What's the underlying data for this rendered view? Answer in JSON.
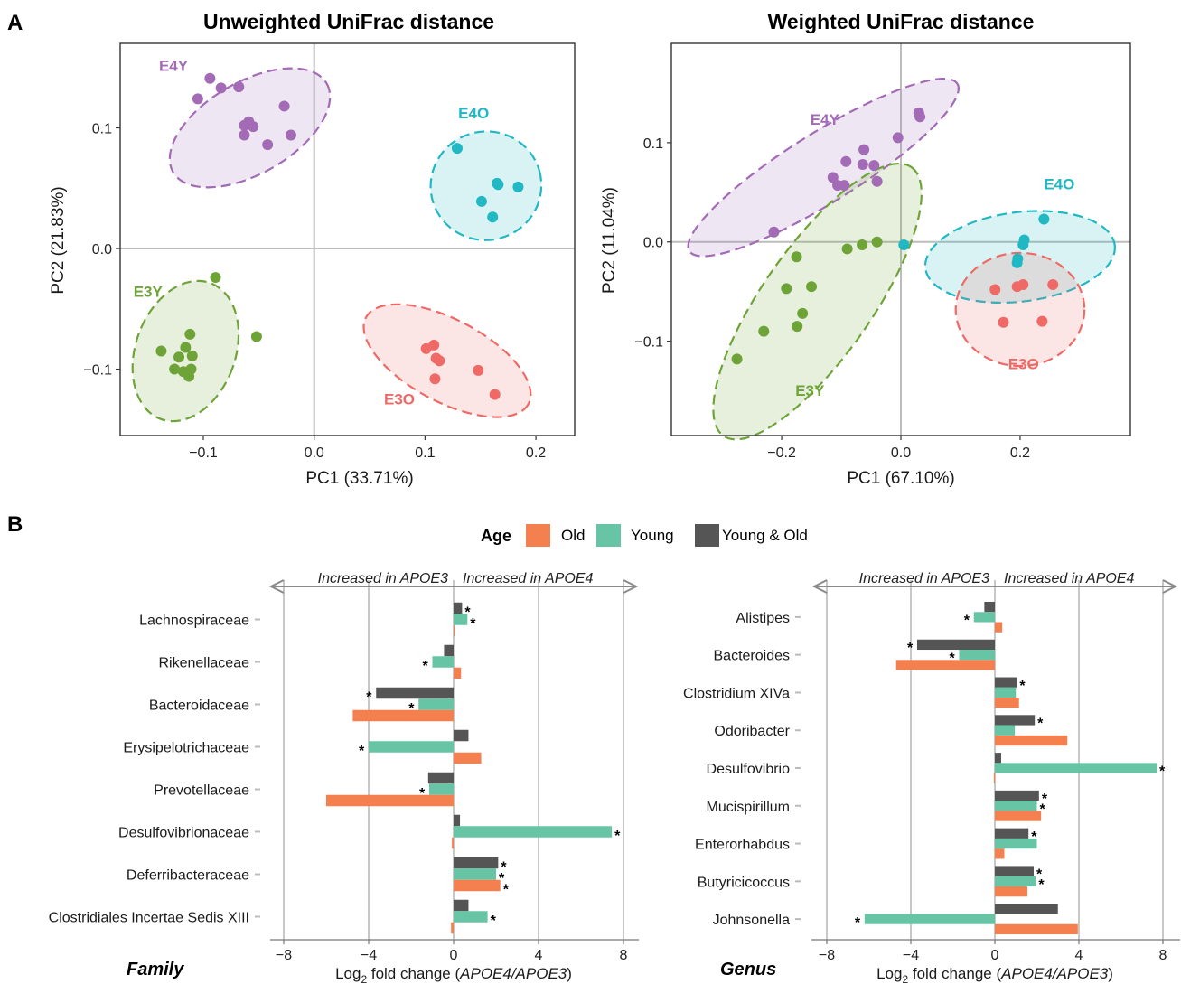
{
  "panel_labels": [
    "A",
    "B"
  ],
  "colors": {
    "E4Y": "#a36bb6",
    "E4O": "#1fb8c3",
    "E3Y": "#6ea338",
    "E3O": "#ef6a66",
    "Old": "#f4804f",
    "Young": "#67c5a5",
    "Both": "#555555"
  },
  "chart_data": [
    {
      "type": "scatter",
      "title": "Unweighted UniFrac distance",
      "xlabel": "PC1 (33.71%)",
      "ylabel": "PC2 (21.83%)",
      "xlim": [
        -0.175,
        0.235
      ],
      "ylim": [
        -0.155,
        0.17
      ],
      "xticks": [
        -0.1,
        0.0,
        0.1,
        0.2
      ],
      "xtick_labels": [
        "−0.1",
        "0.0",
        "0.1",
        "0.2"
      ],
      "yticks": [
        -0.1,
        0.0,
        0.1
      ],
      "ytick_labels": [
        "−0.1",
        "0.0",
        "0.1"
      ],
      "grid": false,
      "zero_lines": true,
      "groups": [
        {
          "name": "E4Y",
          "label_at": [
            -0.14,
            0.147
          ],
          "ellipse": {
            "cx": -0.058,
            "cy": 0.1,
            "rx": 0.08,
            "ry": 0.038,
            "angle": -30
          },
          "points": [
            [
              -0.094,
              0.141
            ],
            [
              -0.084,
              0.133
            ],
            [
              -0.105,
              0.124
            ],
            [
              -0.063,
              0.102
            ],
            [
              -0.059,
              0.105
            ],
            [
              -0.055,
              0.101
            ],
            [
              -0.027,
              0.118
            ],
            [
              -0.063,
              0.094
            ],
            [
              -0.021,
              0.094
            ],
            [
              -0.042,
              0.086
            ],
            [
              -0.068,
              0.134
            ]
          ]
        },
        {
          "name": "E4O",
          "label_at": [
            0.13,
            0.108
          ],
          "ellipse": {
            "cx": 0.155,
            "cy": 0.052,
            "rx": 0.05,
            "ry": 0.045,
            "angle": -15
          },
          "points": [
            [
              0.129,
              0.083
            ],
            [
              0.165,
              0.054
            ],
            [
              0.166,
              0.053
            ],
            [
              0.184,
              0.051
            ],
            [
              0.151,
              0.039
            ],
            [
              0.161,
              0.026
            ]
          ]
        },
        {
          "name": "E3Y",
          "label_at": [
            -0.163,
            -0.04
          ],
          "ellipse": {
            "cx": -0.116,
            "cy": -0.085,
            "rx": 0.045,
            "ry": 0.06,
            "angle": 20
          },
          "points": [
            [
              -0.089,
              -0.024
            ],
            [
              -0.052,
              -0.073
            ],
            [
              -0.112,
              -0.071
            ],
            [
              -0.116,
              -0.082
            ],
            [
              -0.11,
              -0.089
            ],
            [
              -0.122,
              -0.09
            ],
            [
              -0.138,
              -0.085
            ],
            [
              -0.111,
              -0.1
            ],
            [
              -0.118,
              -0.102
            ],
            [
              -0.126,
              -0.1
            ],
            [
              -0.113,
              -0.106
            ]
          ]
        },
        {
          "name": "E3O",
          "label_at": [
            0.063,
            -0.129
          ],
          "ellipse": {
            "cx": 0.12,
            "cy": -0.093,
            "rx": 0.083,
            "ry": 0.034,
            "angle": 28
          },
          "points": [
            [
              0.108,
              -0.08
            ],
            [
              0.101,
              -0.083
            ],
            [
              0.11,
              -0.091
            ],
            [
              0.113,
              -0.093
            ],
            [
              0.148,
              -0.101
            ],
            [
              0.109,
              -0.108
            ],
            [
              0.163,
              -0.121
            ]
          ]
        }
      ]
    },
    {
      "type": "scatter",
      "title": "Weighted UniFrac distance",
      "xlabel": "PC1 (67.10%)",
      "ylabel": "PC2 (11.04%)",
      "xlim": [
        -0.385,
        0.385
      ],
      "ylim": [
        -0.195,
        0.2
      ],
      "xticks": [
        -0.2,
        0.0,
        0.2
      ],
      "xtick_labels": [
        "−0.2",
        "0.0",
        "0.2"
      ],
      "yticks": [
        -0.1,
        0.0,
        0.1
      ],
      "ytick_labels": [
        "−0.1",
        "0.0",
        "0.1"
      ],
      "grid": false,
      "zero_lines": true,
      "groups": [
        {
          "name": "E4Y",
          "label_at": [
            -0.152,
            0.118
          ],
          "ellipse": {
            "cx": -0.13,
            "cy": 0.075,
            "rx": 0.265,
            "ry": 0.035,
            "angle": -32
          },
          "points": [
            [
              -0.213,
              0.01
            ],
            [
              -0.114,
              0.065
            ],
            [
              -0.106,
              0.057
            ],
            [
              -0.095,
              0.057
            ],
            [
              -0.092,
              0.081
            ],
            [
              -0.062,
              0.093
            ],
            [
              -0.045,
              0.077
            ],
            [
              -0.064,
              0.078
            ],
            [
              -0.04,
              0.061
            ],
            [
              -0.005,
              0.105
            ],
            [
              0.03,
              0.13
            ],
            [
              0.032,
              0.126
            ]
          ]
        },
        {
          "name": "E4O",
          "label_at": [
            0.24,
            0.053
          ],
          "ellipse": {
            "cx": 0.2,
            "cy": -0.015,
            "rx": 0.16,
            "ry": 0.045,
            "angle": -7
          },
          "points": [
            [
              0.24,
              0.023
            ],
            [
              0.207,
              0.002
            ],
            [
              0.205,
              -0.003
            ],
            [
              0.196,
              -0.017
            ],
            [
              0.195,
              -0.021
            ],
            [
              0.005,
              -0.003
            ]
          ]
        },
        {
          "name": "E3Y",
          "label_at": [
            -0.177,
            -0.155
          ],
          "ellipse": {
            "cx": -0.14,
            "cy": -0.06,
            "rx": 0.275,
            "ry": 0.055,
            "angle": -55
          },
          "points": [
            [
              -0.04,
              0.0
            ],
            [
              -0.09,
              -0.007
            ],
            [
              -0.065,
              -0.003
            ],
            [
              -0.175,
              -0.015
            ],
            [
              -0.192,
              -0.047
            ],
            [
              -0.15,
              -0.045
            ],
            [
              -0.165,
              -0.072
            ],
            [
              -0.174,
              -0.085
            ],
            [
              -0.23,
              -0.09
            ],
            [
              -0.275,
              -0.118
            ]
          ]
        },
        {
          "name": "E3O",
          "label_at": [
            0.18,
            -0.128
          ],
          "ellipse": {
            "cx": 0.2,
            "cy": -0.068,
            "rx": 0.108,
            "ry": 0.057,
            "angle": 0
          },
          "points": [
            [
              0.195,
              -0.045
            ],
            [
              0.205,
              -0.043
            ],
            [
              0.255,
              -0.043
            ],
            [
              0.158,
              -0.048
            ],
            [
              0.172,
              -0.081
            ],
            [
              0.237,
              -0.08
            ]
          ]
        }
      ]
    },
    {
      "type": "bar",
      "orientation": "horizontal",
      "facet": "Family",
      "xlabel_parts": [
        "Log",
        "2",
        " fold change (",
        "APOE4/APOE3",
        ")"
      ],
      "xlim": [
        -8.8,
        8.8
      ],
      "xticks": [
        -8,
        -4,
        0,
        4,
        8
      ],
      "xtick_labels": [
        "−8",
        "−4",
        "0",
        "4",
        "8"
      ],
      "grid": "vertical",
      "arrow_labels": [
        "Increased in APOE3",
        "Increased in APOE4"
      ],
      "series_names": [
        "Young & Old",
        "Young",
        "Old"
      ],
      "categories": [
        "Lachnospiraceae",
        "Rikenellaceae",
        "Bacteroidaceae",
        "Erysipelotrichaceae",
        "Prevotellaceae",
        "Desulfovibrionaceae",
        "Deferribacteraceae",
        "Clostridiales Incertae Sedis XIII"
      ],
      "series": [
        {
          "key": "Both",
          "values": [
            0.4,
            -0.45,
            -3.65,
            0.7,
            -1.2,
            0.3,
            2.1,
            0.7
          ],
          "sig": [
            true,
            false,
            true,
            false,
            false,
            false,
            true,
            false
          ]
        },
        {
          "key": "Young",
          "values": [
            0.65,
            -1.0,
            -1.65,
            -4.0,
            -1.15,
            7.45,
            2.0,
            1.6
          ],
          "sig": [
            true,
            true,
            true,
            true,
            true,
            true,
            true,
            true
          ]
        },
        {
          "key": "Old",
          "values": [
            0.05,
            0.35,
            -4.75,
            1.3,
            -6.0,
            -0.08,
            2.2,
            -0.12
          ],
          "sig": [
            false,
            false,
            false,
            false,
            false,
            false,
            true,
            false
          ]
        }
      ]
    },
    {
      "type": "bar",
      "orientation": "horizontal",
      "facet": "Genus",
      "xlabel_parts": [
        "Log",
        "2",
        " fold change (",
        "APOE4/APOE3",
        ")"
      ],
      "xlim": [
        -8.8,
        8.8
      ],
      "xticks": [
        -8,
        -4,
        0,
        4,
        8
      ],
      "xtick_labels": [
        "−8",
        "−4",
        "0",
        "4",
        "8"
      ],
      "grid": "vertical",
      "arrow_labels": [
        "Increased in APOE3",
        "Increased in APOE4"
      ],
      "series_names": [
        "Young & Old",
        "Young",
        "Old"
      ],
      "categories": [
        "Alistipes",
        "Bacteroides",
        "Clostridium XIVa",
        "Odoribacter",
        "Desulfovibrio",
        "Mucispirillum",
        "Enterorhabdus",
        "Butyricicoccus",
        "Johnsonella"
      ],
      "series": [
        {
          "key": "Both",
          "values": [
            -0.5,
            -3.7,
            1.05,
            1.9,
            0.3,
            2.1,
            1.6,
            1.85,
            3.0
          ],
          "sig": [
            false,
            true,
            true,
            true,
            false,
            true,
            true,
            true,
            false
          ]
        },
        {
          "key": "Young",
          "values": [
            -1.0,
            -1.7,
            1.0,
            0.95,
            7.7,
            2.0,
            2.0,
            1.95,
            -6.2
          ],
          "sig": [
            true,
            true,
            false,
            false,
            true,
            true,
            false,
            true,
            true
          ]
        },
        {
          "key": "Old",
          "values": [
            0.35,
            -4.7,
            1.15,
            3.45,
            -0.05,
            2.2,
            0.45,
            1.55,
            3.95
          ],
          "sig": [
            false,
            false,
            false,
            false,
            false,
            false,
            false,
            false,
            false
          ]
        }
      ]
    }
  ],
  "legend": {
    "title": "Age",
    "items": [
      {
        "key": "Old",
        "label": "Old"
      },
      {
        "key": "Young",
        "label": "Young"
      },
      {
        "key": "Both",
        "label": "Young & Old"
      }
    ]
  }
}
